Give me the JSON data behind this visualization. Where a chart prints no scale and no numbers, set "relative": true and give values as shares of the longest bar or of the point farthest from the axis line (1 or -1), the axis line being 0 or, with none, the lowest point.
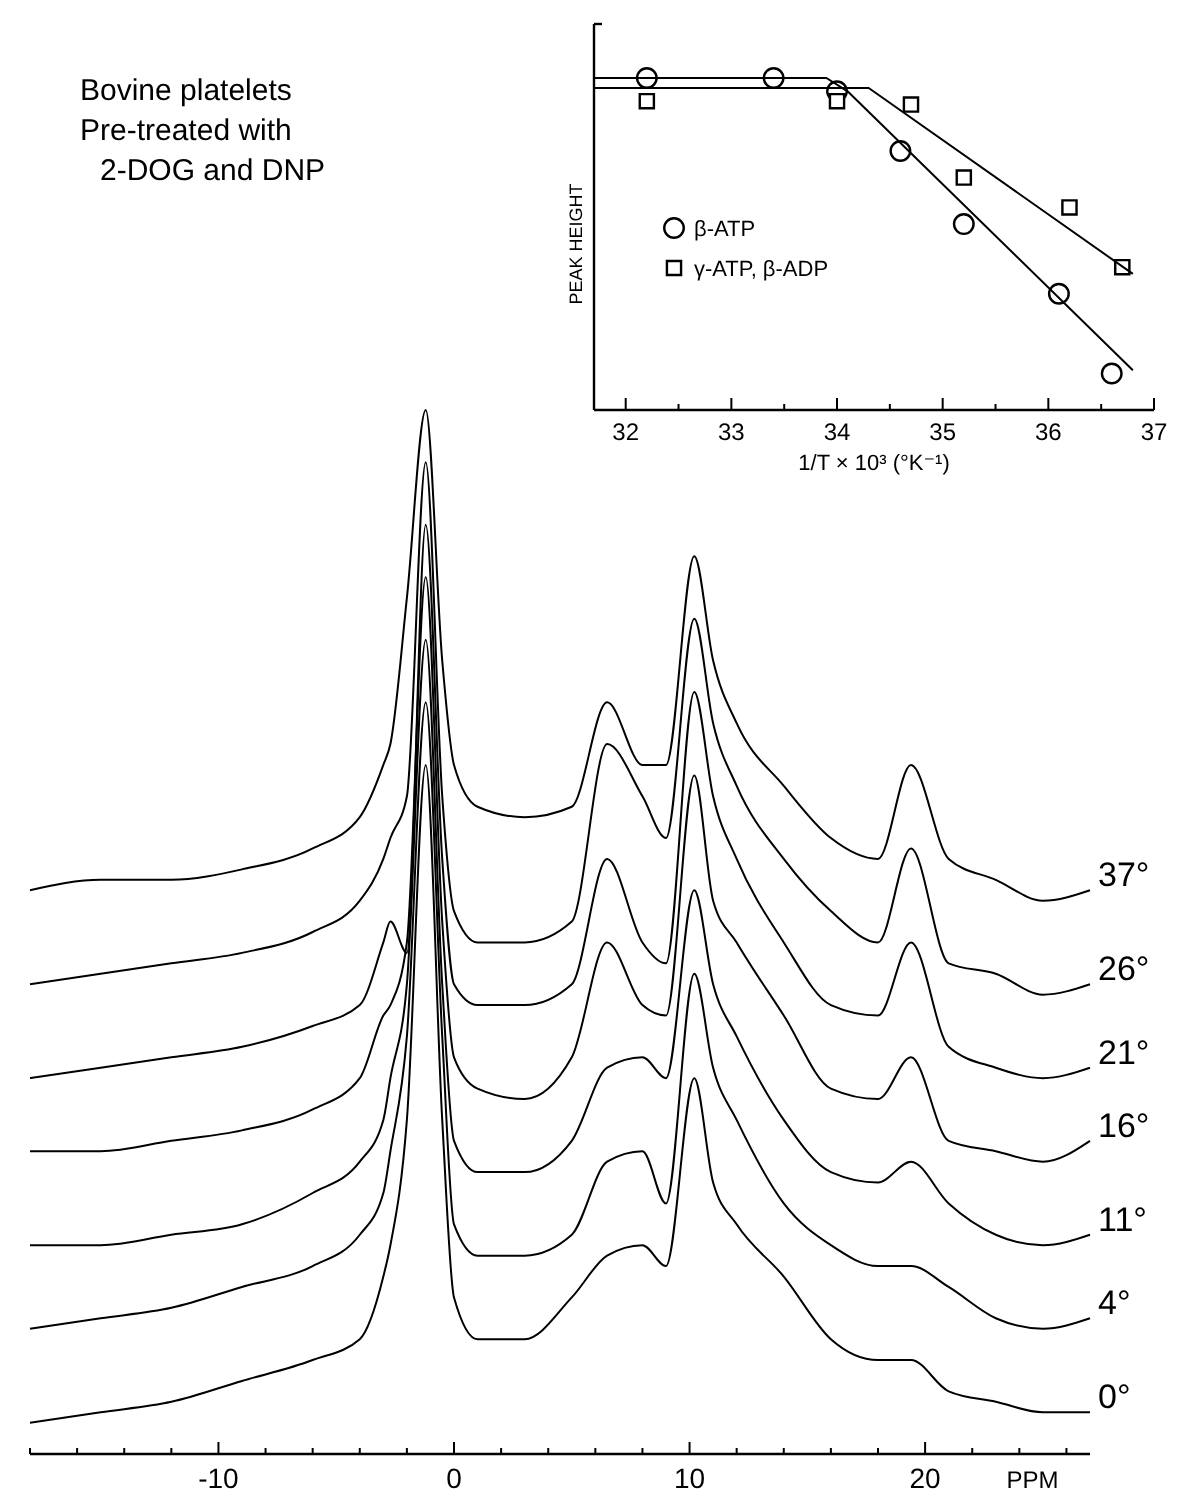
{
  "chart_data": [
    {
      "type": "scatter",
      "xlabel": "1/T × 10³ (°K⁻¹)",
      "ylabel": "PEAK HEIGHT",
      "relative": true,
      "legend": "left",
      "xlim": [
        31.7,
        37
      ],
      "xticks": [
        32,
        {
          "value": 32.5,
          "label": null
        },
        33,
        {
          "value": 33.5,
          "label": null
        },
        34,
        {
          "value": 34.5,
          "label": null
        },
        35,
        {
          "value": 35.5,
          "label": null
        },
        36,
        {
          "value": 36.5,
          "label": null
        },
        37
      ],
      "series": [
        {
          "name": "β-ATP",
          "color": "#000000",
          "marker": "circle",
          "x": [
            32.2,
            33.4,
            34.0,
            34.6,
            35.2,
            36.1,
            36.6
          ],
          "values": [
            1.0,
            1.0,
            0.96,
            0.78,
            0.56,
            0.35,
            0.11
          ]
        },
        {
          "name": "γ-ATP, β-ADP",
          "color": "#000000",
          "marker": "square",
          "x": [
            32.2,
            34.0,
            34.7,
            35.2,
            36.2,
            36.7
          ],
          "values": [
            0.93,
            0.93,
            0.92,
            0.7,
            0.61,
            0.43
          ]
        },
        {
          "type": "line",
          "color": "#000000",
          "marker": "none",
          "x": [
            31.7,
            33.9,
            34.1,
            36.8
          ],
          "values": [
            1.0,
            1.0,
            0.96,
            0.12
          ]
        },
        {
          "type": "line",
          "color": "#000000",
          "marker": "none",
          "x": [
            31.7,
            34.3,
            36.8
          ],
          "values": [
            0.97,
            0.97,
            0.41
          ]
        }
      ]
    },
    {
      "type": "line",
      "title": "Bovine platelets",
      "subtitle": "Pre-treated with 2-DOG and DNP",
      "xlabel": "PPM",
      "relative": true,
      "legend": false,
      "xlim": [
        -18,
        27
      ],
      "xticks": [
        {
          "value": -18,
          "label": null
        },
        {
          "value": -16,
          "label": null
        },
        {
          "value": -14,
          "label": null
        },
        {
          "value": -12,
          "label": null
        },
        -10,
        {
          "value": -8,
          "label": null
        },
        {
          "value": -6,
          "label": null
        },
        {
          "value": -4,
          "label": null
        },
        {
          "value": -2,
          "label": null
        },
        0,
        {
          "value": 2,
          "label": null
        },
        {
          "value": 4,
          "label": null
        },
        {
          "value": 6,
          "label": null
        },
        {
          "value": 8,
          "label": null
        },
        10,
        {
          "value": 12,
          "label": null
        },
        {
          "value": 14,
          "label": null
        },
        {
          "value": 16,
          "label": null
        },
        {
          "value": 18,
          "label": null
        },
        20,
        {
          "value": 22,
          "label": null
        },
        {
          "value": 24,
          "label": null
        },
        {
          "value": 26,
          "label": null
        }
      ],
      "x": [
        -18,
        -15,
        -12,
        -9,
        -6,
        -4,
        -3,
        -2.7,
        -2,
        -1.2,
        -0.5,
        0,
        1,
        3,
        5,
        6.5,
        8,
        9,
        10.2,
        11,
        12,
        14,
        16,
        18,
        19.4,
        21,
        23,
        25,
        27
      ],
      "series": [
        {
          "name": "37°",
          "color": "#000000",
          "values": [
            0.54,
            0.55,
            0.55,
            0.56,
            0.58,
            0.61,
            0.66,
            0.68,
            0.82,
            1.0,
            0.76,
            0.66,
            0.62,
            0.61,
            0.62,
            0.72,
            0.66,
            0.66,
            0.86,
            0.76,
            0.7,
            0.64,
            0.59,
            0.57,
            0.66,
            0.57,
            0.55,
            0.53,
            0.54
          ]
        },
        {
          "name": "26°",
          "color": "#000000",
          "values": [
            0.45,
            0.46,
            0.47,
            0.48,
            0.5,
            0.53,
            0.57,
            0.59,
            0.63,
            0.95,
            0.63,
            0.52,
            0.49,
            0.49,
            0.51,
            0.68,
            0.63,
            0.59,
            0.8,
            0.7,
            0.64,
            0.57,
            0.52,
            0.49,
            0.58,
            0.47,
            0.46,
            0.44,
            0.45
          ]
        },
        {
          "name": "21°",
          "color": "#000000",
          "values": [
            0.36,
            0.37,
            0.38,
            0.39,
            0.41,
            0.43,
            0.49,
            0.51,
            0.48,
            0.89,
            0.57,
            0.45,
            0.43,
            0.43,
            0.45,
            0.57,
            0.49,
            0.47,
            0.73,
            0.63,
            0.57,
            0.49,
            0.43,
            0.42,
            0.49,
            0.39,
            0.37,
            0.36,
            0.37
          ]
        },
        {
          "name": "16°",
          "color": "#000000",
          "values": [
            0.29,
            0.29,
            0.3,
            0.31,
            0.33,
            0.36,
            0.42,
            0.43,
            0.49,
            0.84,
            0.51,
            0.38,
            0.35,
            0.34,
            0.38,
            0.49,
            0.43,
            0.42,
            0.65,
            0.53,
            0.49,
            0.42,
            0.35,
            0.34,
            0.38,
            0.3,
            0.29,
            0.28,
            0.3
          ]
        },
        {
          "name": "11°",
          "color": "#000000",
          "values": [
            0.2,
            0.2,
            0.21,
            0.22,
            0.25,
            0.28,
            0.32,
            0.36,
            0.45,
            0.78,
            0.45,
            0.3,
            0.27,
            0.27,
            0.3,
            0.37,
            0.38,
            0.36,
            0.54,
            0.45,
            0.4,
            0.32,
            0.27,
            0.26,
            0.28,
            0.24,
            0.21,
            0.2,
            0.21
          ]
        },
        {
          "name": "4°",
          "color": "#000000",
          "values": [
            0.12,
            0.13,
            0.14,
            0.16,
            0.18,
            0.21,
            0.25,
            0.29,
            0.4,
            0.72,
            0.4,
            0.22,
            0.19,
            0.19,
            0.21,
            0.28,
            0.29,
            0.24,
            0.46,
            0.37,
            0.32,
            0.24,
            0.2,
            0.18,
            0.18,
            0.16,
            0.13,
            0.12,
            0.13
          ]
        },
        {
          "name": "0°",
          "color": "#000000",
          "values": [
            0.03,
            0.04,
            0.05,
            0.07,
            0.09,
            0.11,
            0.17,
            0.2,
            0.32,
            0.66,
            0.32,
            0.15,
            0.11,
            0.11,
            0.15,
            0.19,
            0.2,
            0.18,
            0.36,
            0.26,
            0.22,
            0.17,
            0.11,
            0.09,
            0.09,
            0.06,
            0.05,
            0.04,
            0.04
          ]
        }
      ]
    }
  ]
}
